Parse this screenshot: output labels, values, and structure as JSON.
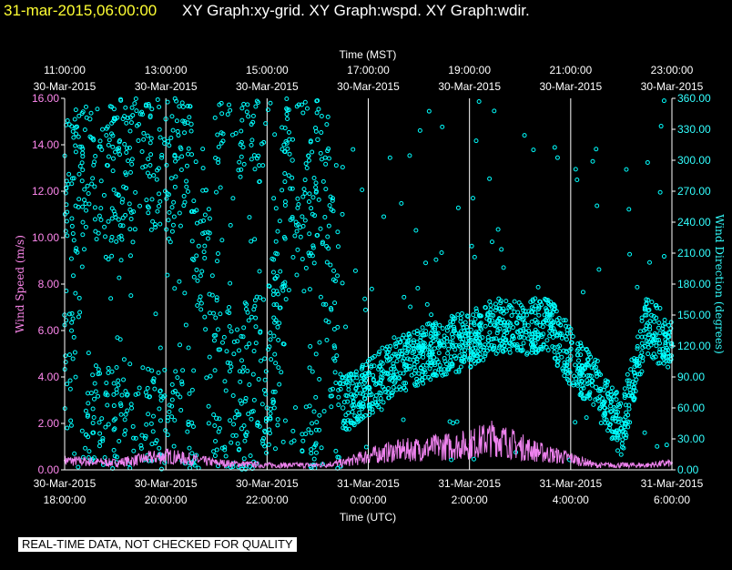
{
  "title": {
    "timestamp": "31-mar-2015,06:00:00",
    "parts": "XY Graph:xy-grid.  XY Graph:wspd.  XY Graph:wdir."
  },
  "quality_note": "REAL-TIME DATA, NOT CHECKED FOR QUALITY",
  "colors": {
    "background": "#000000",
    "wind_speed": "#ee82ee",
    "wind_direction": "#00ffff",
    "grid": "#ffffff",
    "title_date": "#ffff33"
  },
  "chart_data": {
    "type": "scatter",
    "top_axis": {
      "label": "Time (MST)",
      "ticks": [
        {
          "time": "11:00:00",
          "date": "30-Mar-2015"
        },
        {
          "time": "13:00:00",
          "date": "30-Mar-2015"
        },
        {
          "time": "15:00:00",
          "date": "30-Mar-2015"
        },
        {
          "time": "17:00:00",
          "date": "30-Mar-2015"
        },
        {
          "time": "19:00:00",
          "date": "30-Mar-2015"
        },
        {
          "time": "21:00:00",
          "date": "30-Mar-2015"
        },
        {
          "time": "23:00:00",
          "date": "30-Mar-2015"
        }
      ]
    },
    "bottom_axis": {
      "label": "Time (UTC)",
      "range": [
        "2015-03-30T18:00:00Z",
        "2015-03-31T06:00:00Z"
      ],
      "ticks": [
        {
          "date": "30-Mar-2015",
          "time": "18:00:00"
        },
        {
          "date": "30-Mar-2015",
          "time": "20:00:00"
        },
        {
          "date": "30-Mar-2015",
          "time": "22:00:00"
        },
        {
          "date": "31-Mar-2015",
          "time": "0:00:00"
        },
        {
          "date": "31-Mar-2015",
          "time": "2:00:00"
        },
        {
          "date": "31-Mar-2015",
          "time": "4:00:00"
        },
        {
          "date": "31-Mar-2015",
          "time": "6:00:00"
        }
      ]
    },
    "left_axis": {
      "label": "Wind Speed (m/s)",
      "range": [
        0,
        16
      ],
      "ticks": [
        "0.00",
        "2.00",
        "4.00",
        "6.00",
        "8.00",
        "10.00",
        "12.00",
        "14.00",
        "16.00"
      ]
    },
    "right_axis": {
      "label": "Wind Direction (degrees)",
      "range": [
        0,
        360
      ],
      "ticks": [
        "0.00",
        "30.00",
        "60.00",
        "90.00",
        "120.00",
        "150.00",
        "180.00",
        "210.00",
        "240.00",
        "270.00",
        "300.00",
        "330.00",
        "360.00"
      ]
    },
    "grid": {
      "vertical": true,
      "horizontal": false
    },
    "series": [
      {
        "axis": "left",
        "style": "line",
        "x_hours_utc_since_start": [
          0,
          1,
          2,
          3,
          4,
          5,
          5.5,
          6,
          6.5,
          7,
          7.5,
          8,
          8.5,
          9,
          9.5,
          10,
          10.5,
          11,
          11.5,
          12
        ],
        "values": [
          0.4,
          0.3,
          0.6,
          0.3,
          0.2,
          0.2,
          0.3,
          0.6,
          0.8,
          0.9,
          1.0,
          1.1,
          1.4,
          1.0,
          0.7,
          0.5,
          0.2,
          0.2,
          0.2,
          0.3
        ]
      },
      {
        "axis": "right",
        "style": "points",
        "x_hours_utc_since_start": [
          0,
          0.5,
          1,
          1.5,
          2,
          2.5,
          3,
          3.5,
          4,
          4.5,
          5,
          5.5,
          6,
          6.5,
          7,
          7.5,
          8,
          8.5,
          9,
          9.5,
          10,
          10.5,
          11,
          11.5,
          12
        ],
        "values": [
          150,
          340,
          340,
          345,
          340,
          335,
          50,
          40,
          60,
          300,
          320,
          60,
          80,
          100,
          110,
          120,
          125,
          140,
          135,
          145,
          110,
          80,
          40,
          140,
          120
        ]
      }
    ]
  }
}
